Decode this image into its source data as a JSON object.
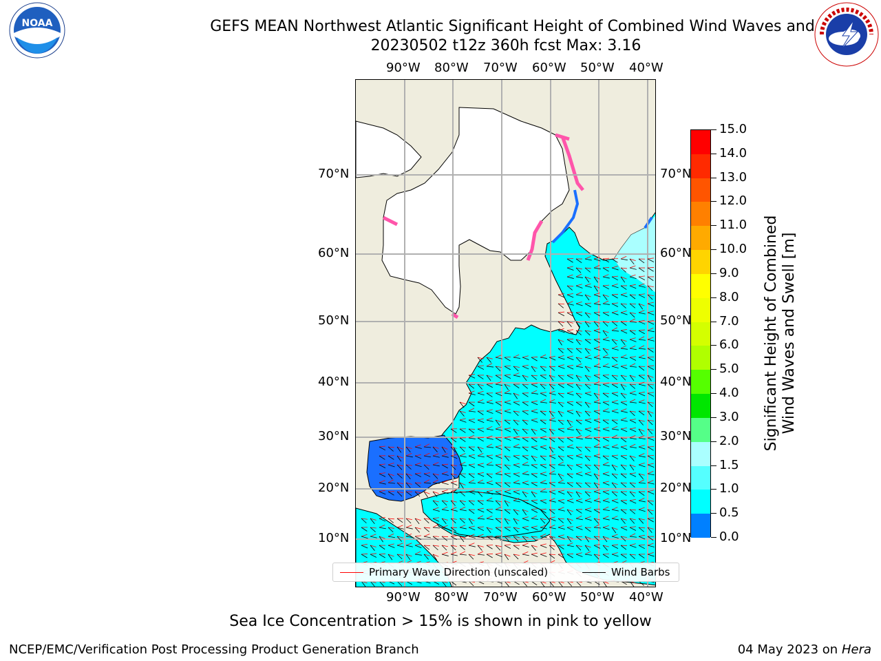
{
  "title": {
    "line1": "GEFS MEAN Northwest Atlantic Significant Height of Combined Wind Waves and S",
    "line2": "20230502 t12z 360h fcst   Max: 3.16"
  },
  "logos": {
    "noaa_text": "NOAA",
    "noaa_ring": "NATIONAL OCEANIC AND ATMOSPHERIC ADMINISTRATION · U.S. DEPARTMENT OF COMMERCE",
    "nws_ring": "NATIONAL WEATHER SERVICE"
  },
  "map": {
    "lon_labels_top": [
      "90°W",
      "80°W",
      "70°W",
      "60°W",
      "50°W",
      "40°W"
    ],
    "lon_labels_bottom": [
      "90°W",
      "80°W",
      "70°W",
      "60°W",
      "50°W",
      "40°W"
    ],
    "lat_labels_left": [
      "70°N",
      "60°N",
      "50°N",
      "40°N",
      "30°N",
      "20°N",
      "10°N"
    ],
    "lat_labels_right": [
      "70°N",
      "60°N",
      "50°N",
      "40°N",
      "30°N",
      "20°N",
      "10°N"
    ],
    "land_color": "#efedde",
    "ice_color": "#ffffff",
    "ocean_color": "#00ffff",
    "gulf_color": "#1a6fff"
  },
  "legend": {
    "wave_direction": "Primary Wave Direction (unscaled)",
    "wave_color": "#ff0000",
    "wind_barbs": "Wind Barbs",
    "barb_color": "#000000"
  },
  "colorbar": {
    "label_line1": "Significant Height of Combined",
    "label_line2": "Wind Waves and Swell [m]",
    "ticks": [
      "15.0",
      "14.0",
      "13.0",
      "12.0",
      "11.0",
      "10.0",
      "9.0",
      "8.0",
      "7.0",
      "6.0",
      "5.0",
      "4.0",
      "3.0",
      "2.0",
      "1.5",
      "1.0",
      "0.5",
      "0.0"
    ],
    "colors": [
      "#ff0000",
      "#ff2a00",
      "#ff5500",
      "#ff8000",
      "#ffaa00",
      "#ffd400",
      "#ffff00",
      "#eeff00",
      "#d4ff00",
      "#b0ff00",
      "#55ff00",
      "#00e600",
      "#55ff88",
      "#aaffff",
      "#55ffff",
      "#00ffff",
      "#0080ff",
      "#0000ff"
    ]
  },
  "footer": {
    "note": "Sea Ice Concentration > 15% is shown in pink to yellow",
    "left": "NCEP/EMC/Verification Post Processing Product Generation Branch",
    "date": "04 May 2023 on",
    "host": "Hera"
  }
}
